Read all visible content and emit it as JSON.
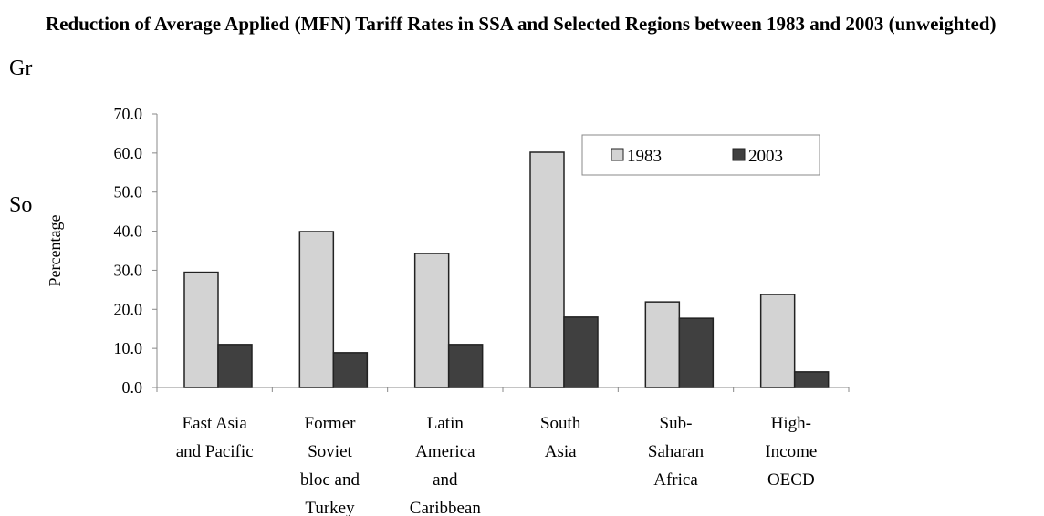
{
  "side_text": [
    "Gr",
    "So"
  ],
  "chart_data": {
    "type": "bar",
    "title": "Reduction of Average Applied (MFN) Tariff Rates in SSA and Selected Regions between 1983 and 2003 (unweighted)",
    "y_label": "Percentage",
    "categories": [
      [
        "East Asia",
        "and Pacific"
      ],
      [
        "Former",
        "Soviet",
        "bloc and",
        "Turkey"
      ],
      [
        "Latin",
        "America",
        "and",
        "Caribbean"
      ],
      [
        "South",
        "Asia"
      ],
      [
        "Sub-",
        "Saharan",
        "Africa"
      ],
      [
        "High-",
        "Income",
        "OECD"
      ]
    ],
    "series": [
      {
        "name": "1983",
        "color": "#d3d3d3",
        "values": [
          29.5,
          39.9,
          34.3,
          60.2,
          21.9,
          23.8
        ]
      },
      {
        "name": "2003",
        "color": "#404040",
        "values": [
          11.0,
          8.9,
          11.0,
          18.0,
          17.7,
          4.0
        ]
      }
    ],
    "ylim": [
      0,
      70
    ],
    "yticks": [
      {
        "value": 0,
        "label": "0.0"
      },
      {
        "value": 10,
        "label": "10.0"
      },
      {
        "value": 20,
        "label": "20.0"
      },
      {
        "value": 30,
        "label": "30.0"
      },
      {
        "value": 40,
        "label": "40.0"
      },
      {
        "value": 50,
        "label": "50.0"
      },
      {
        "value": 60,
        "label": "60.0"
      },
      {
        "value": 70,
        "label": "70.0"
      }
    ],
    "legend": "upper right"
  }
}
